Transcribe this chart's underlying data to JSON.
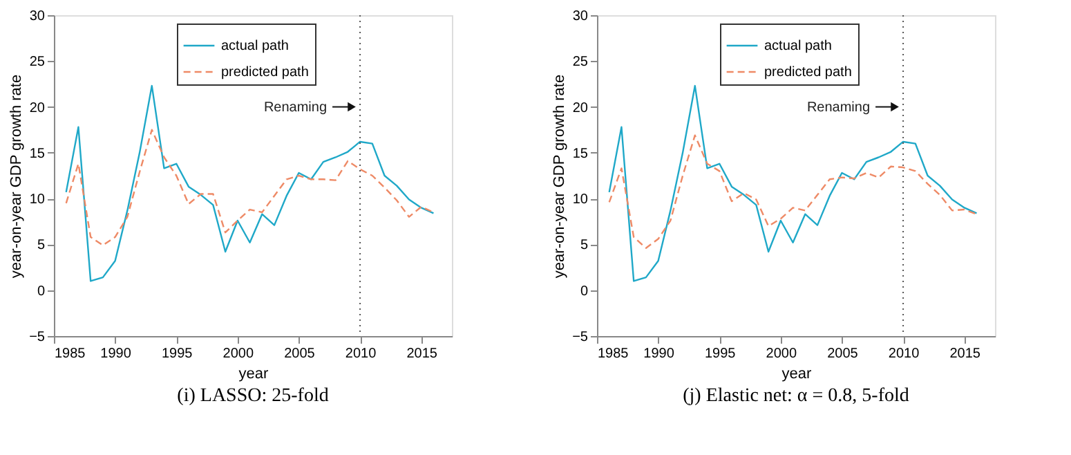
{
  "chart_data": [
    {
      "type": "line",
      "title": "(i) LASSO: 25-fold",
      "xlabel": "year",
      "ylabel": "year-on-year GDP growth rate",
      "x": [
        1986,
        1987,
        1988,
        1989,
        1990,
        1991,
        1992,
        1993,
        1994,
        1995,
        1996,
        1997,
        1998,
        1999,
        2000,
        2001,
        2002,
        2003,
        2004,
        2005,
        2006,
        2007,
        2008,
        2009,
        2010,
        2011,
        2012,
        2013,
        2014,
        2015,
        2016
      ],
      "series": [
        {
          "name": "actual path",
          "color": "#1fa8c8",
          "line_style": "solid",
          "values": [
            10.7,
            17.8,
            1.0,
            1.4,
            3.2,
            8.7,
            15.0,
            22.3,
            13.3,
            13.8,
            11.3,
            10.4,
            9.3,
            4.2,
            7.6,
            5.2,
            8.3,
            7.1,
            10.3,
            12.8,
            12.1,
            14.0,
            14.5,
            15.1,
            16.2,
            16.0,
            12.5,
            11.4,
            9.9,
            9.0,
            8.4
          ]
        },
        {
          "name": "predicted path",
          "color": "#ee8a66",
          "line_style": "dashed",
          "values": [
            9.5,
            13.8,
            5.8,
            4.9,
            5.8,
            8.0,
            12.9,
            17.5,
            14.5,
            12.5,
            9.4,
            10.5,
            10.5,
            6.3,
            7.6,
            8.8,
            8.5,
            10.3,
            12.1,
            12.5,
            12.1,
            12.1,
            12.0,
            14.1,
            13.2,
            12.5,
            11.2,
            9.8,
            8.0,
            9.1,
            8.5
          ]
        }
      ],
      "xlim": [
        1985,
        2017.5
      ],
      "ylim": [
        -5,
        30
      ],
      "xticks": [
        1985,
        1990,
        1995,
        2000,
        2005,
        2010,
        2015
      ],
      "yticks": [
        -5,
        0,
        5,
        10,
        15,
        20,
        25,
        30
      ],
      "ref_lines": [
        {
          "axis": "x",
          "value": 2010,
          "line_style": "dotted",
          "color": "#555555"
        }
      ],
      "annotations": [
        {
          "text": "Renaming",
          "x": 2010,
          "y": 20
        }
      ],
      "legend": "top",
      "grid": false
    },
    {
      "type": "line",
      "title": "(j) Elastic net: α = 0.8, 5-fold",
      "xlabel": "year",
      "ylabel": "year-on-year GDP growth rate",
      "x": [
        1986,
        1987,
        1988,
        1989,
        1990,
        1991,
        1992,
        1993,
        1994,
        1995,
        1996,
        1997,
        1998,
        1999,
        2000,
        2001,
        2002,
        2003,
        2004,
        2005,
        2006,
        2007,
        2008,
        2009,
        2010,
        2011,
        2012,
        2013,
        2014,
        2015,
        2016
      ],
      "series": [
        {
          "name": "actual path",
          "color": "#1fa8c8",
          "line_style": "solid",
          "values": [
            10.7,
            17.8,
            1.0,
            1.4,
            3.2,
            8.7,
            15.0,
            22.3,
            13.3,
            13.8,
            11.3,
            10.4,
            9.3,
            4.2,
            7.6,
            5.2,
            8.3,
            7.1,
            10.3,
            12.8,
            12.1,
            14.0,
            14.5,
            15.1,
            16.2,
            16.0,
            12.5,
            11.4,
            9.9,
            9.0,
            8.4
          ]
        },
        {
          "name": "predicted path",
          "color": "#ee8a66",
          "line_style": "dashed",
          "values": [
            9.6,
            13.3,
            5.8,
            4.6,
            5.6,
            7.6,
            12.5,
            16.9,
            13.8,
            13.0,
            9.7,
            10.6,
            9.9,
            7.0,
            7.8,
            9.0,
            8.7,
            10.4,
            12.1,
            12.3,
            12.2,
            12.8,
            12.3,
            13.5,
            13.4,
            13.0,
            11.6,
            10.4,
            8.7,
            8.8,
            8.3
          ]
        }
      ],
      "xlim": [
        1985,
        2017.5
      ],
      "ylim": [
        -5,
        30
      ],
      "xticks": [
        1985,
        1990,
        1995,
        2000,
        2005,
        2010,
        2015
      ],
      "yticks": [
        -5,
        0,
        5,
        10,
        15,
        20,
        25,
        30
      ],
      "ref_lines": [
        {
          "axis": "x",
          "value": 2010,
          "line_style": "dotted",
          "color": "#555555"
        }
      ],
      "annotations": [
        {
          "text": "Renaming",
          "x": 2010,
          "y": 20
        }
      ],
      "legend": "top",
      "grid": false
    }
  ]
}
